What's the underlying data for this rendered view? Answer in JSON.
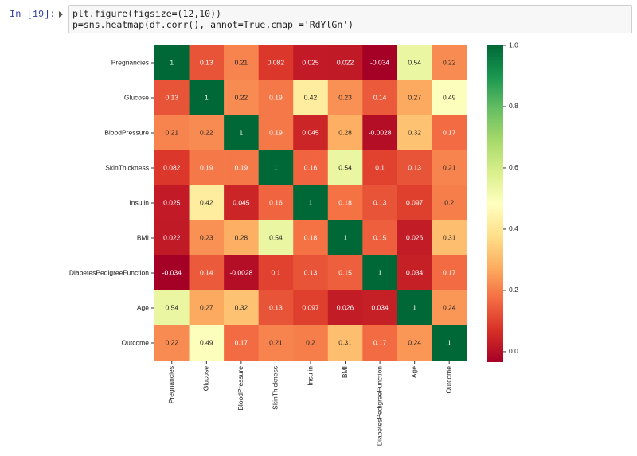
{
  "prompt": "In [19]:",
  "code": [
    "plt.figure(figsize=(12,10))",
    "p=sns.heatmap(df.corr(), annot=True,cmap ='RdYlGn')"
  ],
  "chart_data": {
    "type": "heatmap",
    "categories": [
      "Pregnancies",
      "Glucose",
      "BloodPressure",
      "SkinThickness",
      "Insulin",
      "BMI",
      "DiabetesPedigreeFunction",
      "Age",
      "Outcome"
    ],
    "values": [
      [
        1,
        0.13,
        0.21,
        0.082,
        0.025,
        0.022,
        -0.034,
        0.54,
        0.22
      ],
      [
        0.13,
        1,
        0.22,
        0.19,
        0.42,
        0.23,
        0.14,
        0.27,
        0.49
      ],
      [
        0.21,
        0.22,
        1,
        0.19,
        0.045,
        0.28,
        -0.0028,
        0.32,
        0.17
      ],
      [
        0.082,
        0.19,
        0.19,
        1,
        0.16,
        0.54,
        0.1,
        0.13,
        0.21
      ],
      [
        0.025,
        0.42,
        0.045,
        0.16,
        1,
        0.18,
        0.13,
        0.097,
        0.2
      ],
      [
        0.022,
        0.23,
        0.28,
        0.54,
        0.18,
        1,
        0.15,
        0.026,
        0.31
      ],
      [
        -0.034,
        0.14,
        -0.0028,
        0.1,
        0.13,
        0.15,
        1,
        0.034,
        0.17
      ],
      [
        0.54,
        0.27,
        0.32,
        0.13,
        0.097,
        0.026,
        0.034,
        1,
        0.24
      ],
      [
        0.22,
        0.49,
        0.17,
        0.21,
        0.2,
        0.31,
        0.17,
        0.24,
        1
      ]
    ],
    "zlim": [
      -0.034,
      1
    ],
    "zticks": [
      {
        "value": 0,
        "label": "0.0"
      },
      {
        "value": 0.2,
        "label": "0.2"
      },
      {
        "value": 0.4,
        "label": "0.4"
      },
      {
        "value": 0.6,
        "label": "0.6"
      },
      {
        "value": 0.8,
        "label": "0.8"
      },
      {
        "value": 1,
        "label": "1.0"
      }
    ],
    "colors": [
      "#a50026",
      "#d73027",
      "#f46d43",
      "#fdae61",
      "#fee08b",
      "#ffffbf",
      "#d9ef8b",
      "#a6d96a",
      "#66bd63",
      "#1a9850",
      "#006837"
    ]
  }
}
